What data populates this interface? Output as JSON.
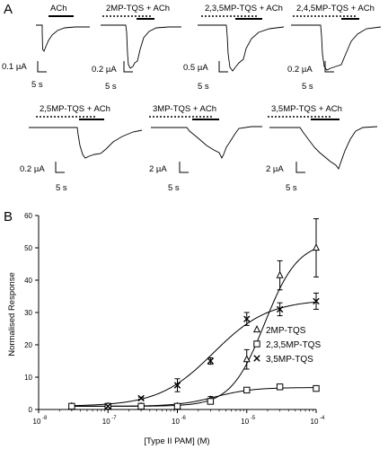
{
  "panel_a": {
    "letter": "A",
    "traces": [
      {
        "label": "ACh",
        "current_scale": "0.1 µA",
        "time_scale": "5 s",
        "dotted_bar": false
      },
      {
        "label": "2MP-TQS + ACh",
        "current_scale": "0.2 µA",
        "time_scale": "5 s",
        "dotted_bar": true
      },
      {
        "label": "2,3,5MP-TQS + ACh",
        "current_scale": "0.5 µA",
        "time_scale": "5 s",
        "dotted_bar": true
      },
      {
        "label": "2,4,5MP-TQS + ACh",
        "current_scale": "0.2 µA",
        "time_scale": "5 s",
        "dotted_bar": true
      },
      {
        "label": "2,5MP-TQS + ACh",
        "current_scale": "0.2 µA",
        "time_scale": "5 s",
        "dotted_bar": true
      },
      {
        "label": "3MP-TQS + ACh",
        "current_scale": "2 µA",
        "time_scale": "5 s",
        "dotted_bar": true
      },
      {
        "label": "3,5MP-TQS + ACh",
        "current_scale": "2 µA",
        "time_scale": "5 s",
        "dotted_bar": true
      }
    ]
  },
  "panel_b": {
    "letter": "B"
  },
  "chart_data": {
    "type": "scatter",
    "xlabel": "[Type II PAM] (M)",
    "ylabel": "Normalised Response",
    "xscale": "log",
    "xlim": [
      1e-08,
      0.0001
    ],
    "ylim": [
      0,
      60
    ],
    "x_tick_labels": [
      "10",
      "10",
      "10",
      "10",
      "10"
    ],
    "x_tick_exponents": [
      "-8",
      "-7",
      "-6",
      "-5",
      "-4"
    ],
    "y_ticks": [
      0,
      10,
      20,
      30,
      40,
      50,
      60
    ],
    "series": [
      {
        "name": "2MP-TQS",
        "marker": "triangle",
        "x": [
          3e-08,
          1e-07,
          3e-07,
          1e-06,
          3e-06,
          1e-05,
          3e-05,
          0.0001
        ],
        "y": [
          1,
          1,
          1,
          1,
          3,
          15.5,
          41.5,
          50
        ],
        "error": [
          0,
          0,
          0,
          0.5,
          1,
          3,
          4.5,
          9
        ],
        "fit": {
          "bottom": 1,
          "top": 52,
          "ec50": 1.8e-05,
          "hill": 1.8
        }
      },
      {
        "name": "2,3,5MP-TQS",
        "marker": "square",
        "x": [
          3e-08,
          1e-07,
          3e-07,
          1e-06,
          3e-06,
          1e-05,
          3e-05,
          0.0001
        ],
        "y": [
          1,
          1,
          1,
          1,
          2.5,
          6,
          7,
          6.5
        ],
        "error": [
          0,
          0,
          0,
          0,
          0.3,
          0.5,
          0.5,
          0.5
        ],
        "fit": {
          "bottom": 1,
          "top": 6.8,
          "ec50": 3.5e-06,
          "hill": 1.6
        }
      },
      {
        "name": "3,5MP-TQS",
        "marker": "x",
        "x": [
          1e-07,
          3e-07,
          1e-06,
          3e-06,
          1e-05,
          3e-05,
          0.0001
        ],
        "y": [
          1,
          3.5,
          7.5,
          15,
          28,
          31,
          33.5
        ],
        "error": [
          0,
          0.3,
          2,
          1,
          2,
          2,
          2.5
        ],
        "fit": {
          "bottom": 1,
          "top": 34,
          "ec50": 3.3e-06,
          "hill": 1.1
        }
      }
    ],
    "legend": "right"
  }
}
